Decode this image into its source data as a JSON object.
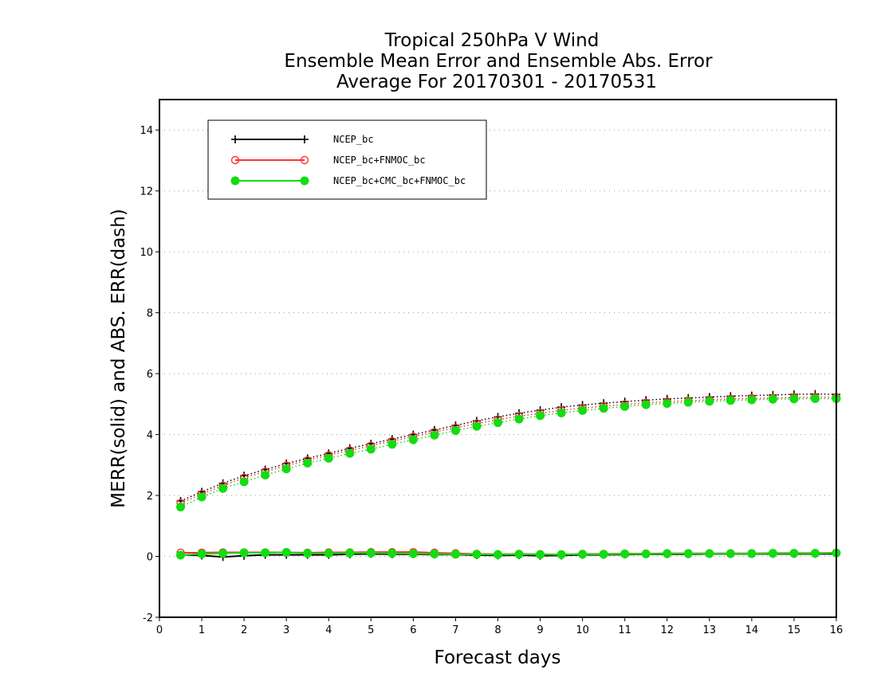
{
  "chart_data": {
    "type": "line",
    "title_lines": [
      "Tropical 250hPa V Wind",
      "Ensemble Mean Error and Ensemble Abs. Error",
      "Average For 20170301 - 20170531"
    ],
    "xlabel": "Forecast days",
    "ylabel": "MERR(solid) and ABS. ERR(dash)",
    "xlim": [
      0,
      16
    ],
    "ylim": [
      -2,
      15
    ],
    "x_ticks": [
      "0",
      "1",
      "2",
      "3",
      "4",
      "5",
      "6",
      "7",
      "8",
      "9",
      "10",
      "11",
      "12",
      "13",
      "14",
      "15",
      "16"
    ],
    "y_ticks": [
      "-2",
      "0",
      "2",
      "4",
      "6",
      "8",
      "10",
      "12",
      "14"
    ],
    "grid": "horizontal dotted",
    "legend_position": "top-left",
    "x": [
      0.5,
      1,
      1.5,
      2,
      2.5,
      3,
      3.5,
      4,
      4.5,
      5,
      5.5,
      6,
      6.5,
      7,
      7.5,
      8,
      8.5,
      9,
      9.5,
      10,
      10.5,
      11,
      11.5,
      12,
      12.5,
      13,
      13.5,
      14,
      14.5,
      15,
      15.5,
      16
    ],
    "series": [
      {
        "name": "NCEP_bc",
        "color": "#000000",
        "marker": "plus",
        "merr": [
          0.05,
          0.03,
          -0.02,
          0.02,
          0.05,
          0.05,
          0.05,
          0.05,
          0.07,
          0.08,
          0.07,
          0.07,
          0.06,
          0.06,
          0.04,
          0.03,
          0.04,
          0.02,
          0.03,
          0.05,
          0.05,
          0.06,
          0.07,
          0.07,
          0.07,
          0.08,
          0.08,
          0.08,
          0.08,
          0.08,
          0.08,
          0.08
        ],
        "abs_err": [
          1.82,
          2.12,
          2.4,
          2.65,
          2.85,
          3.05,
          3.22,
          3.38,
          3.55,
          3.7,
          3.85,
          4.0,
          4.15,
          4.3,
          4.45,
          4.58,
          4.7,
          4.8,
          4.9,
          4.97,
          5.03,
          5.08,
          5.13,
          5.17,
          5.2,
          5.23,
          5.26,
          5.28,
          5.3,
          5.32,
          5.33,
          5.32
        ]
      },
      {
        "name": "NCEP_bc+FNMOC_bc",
        "color": "#ff3333",
        "marker": "open-circle",
        "merr": [
          0.12,
          0.12,
          0.13,
          0.13,
          0.13,
          0.13,
          0.12,
          0.13,
          0.13,
          0.14,
          0.14,
          0.14,
          0.12,
          0.1,
          0.08,
          0.07,
          0.08,
          0.07,
          0.06,
          0.08,
          0.08,
          0.09,
          0.09,
          0.1,
          0.1,
          0.1,
          0.1,
          0.1,
          0.11,
          0.11,
          0.11,
          0.12
        ],
        "abs_err": [
          1.75,
          2.05,
          2.32,
          2.58,
          2.78,
          2.98,
          3.15,
          3.32,
          3.48,
          3.63,
          3.78,
          3.93,
          4.08,
          4.22,
          4.36,
          4.49,
          4.6,
          4.7,
          4.79,
          4.87,
          4.93,
          4.99,
          5.04,
          5.08,
          5.11,
          5.14,
          5.17,
          5.19,
          5.2,
          5.22,
          5.23,
          5.23
        ]
      },
      {
        "name": "NCEP_bc+CMC_bc+FNMOC_bc",
        "color": "#11dd11",
        "marker": "filled-circle",
        "merr": [
          0.04,
          0.08,
          0.1,
          0.12,
          0.12,
          0.13,
          0.1,
          0.1,
          0.11,
          0.11,
          0.1,
          0.09,
          0.08,
          0.07,
          0.07,
          0.06,
          0.07,
          0.06,
          0.06,
          0.07,
          0.07,
          0.08,
          0.08,
          0.09,
          0.09,
          0.09,
          0.09,
          0.09,
          0.1,
          0.1,
          0.1,
          0.11
        ],
        "abs_err": [
          1.62,
          1.95,
          2.23,
          2.45,
          2.67,
          2.87,
          3.06,
          3.22,
          3.38,
          3.52,
          3.68,
          3.83,
          3.98,
          4.13,
          4.27,
          4.39,
          4.51,
          4.62,
          4.71,
          4.79,
          4.86,
          4.92,
          4.98,
          5.02,
          5.06,
          5.09,
          5.12,
          5.14,
          5.16,
          5.17,
          5.18,
          5.18
        ]
      }
    ]
  }
}
